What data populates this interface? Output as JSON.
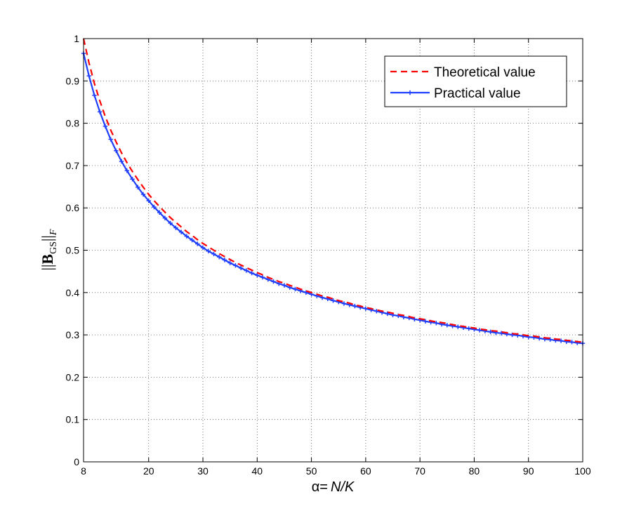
{
  "chart_data": {
    "type": "line",
    "title": "",
    "xlabel_alpha": "α=",
    "xlabel_var": "N/K",
    "ylabel": {
      "norm_open": "||",
      "symbol": "B",
      "subscript": "GS",
      "norm_close": "||",
      "subscript2": "F"
    },
    "xlim": [
      8,
      100
    ],
    "ylim": [
      0,
      1
    ],
    "xticks": [
      8,
      20,
      30,
      40,
      50,
      60,
      70,
      80,
      90,
      100
    ],
    "yticks": [
      0,
      0.1,
      0.2,
      0.3,
      0.4,
      0.5,
      0.6,
      0.7,
      0.8,
      0.9,
      1
    ],
    "xtick_labels": [
      "8",
      "20",
      "30",
      "40",
      "50",
      "60",
      "70",
      "80",
      "90",
      "100"
    ],
    "ytick_labels": [
      "0",
      "0.1",
      "0.2",
      "0.3",
      "0.4",
      "0.5",
      "0.6",
      "0.7",
      "0.8",
      "0.9",
      "1"
    ],
    "grid": true,
    "legend_position": "top-right",
    "x": [
      8,
      9,
      10,
      11,
      12,
      13,
      14,
      15,
      16,
      17,
      18,
      19,
      20,
      21,
      22,
      23,
      24,
      25,
      26,
      27,
      28,
      29,
      30,
      31,
      32,
      33,
      34,
      35,
      36,
      37,
      38,
      39,
      40,
      41,
      42,
      43,
      44,
      45,
      46,
      47,
      48,
      49,
      50,
      51,
      52,
      53,
      54,
      55,
      56,
      57,
      58,
      59,
      60,
      61,
      62,
      63,
      64,
      65,
      66,
      67,
      68,
      69,
      70,
      71,
      72,
      73,
      74,
      75,
      76,
      77,
      78,
      79,
      80,
      81,
      82,
      83,
      84,
      85,
      86,
      87,
      88,
      89,
      90,
      91,
      92,
      93,
      94,
      95,
      96,
      97,
      98,
      99,
      100
    ],
    "series": [
      {
        "name": "Theoretical value",
        "color": "#ff0000",
        "style": "dashed",
        "values": [
          1.0,
          0.943,
          0.894,
          0.853,
          0.816,
          0.784,
          0.756,
          0.73,
          0.707,
          0.686,
          0.667,
          0.649,
          0.632,
          0.617,
          0.603,
          0.59,
          0.577,
          0.566,
          0.555,
          0.544,
          0.535,
          0.525,
          0.516,
          0.508,
          0.5,
          0.492,
          0.485,
          0.478,
          0.471,
          0.465,
          0.459,
          0.453,
          0.447,
          0.442,
          0.436,
          0.431,
          0.426,
          0.422,
          0.417,
          0.413,
          0.408,
          0.404,
          0.4,
          0.396,
          0.392,
          0.389,
          0.385,
          0.381,
          0.378,
          0.375,
          0.371,
          0.368,
          0.365,
          0.362,
          0.359,
          0.356,
          0.354,
          0.351,
          0.348,
          0.346,
          0.343,
          0.34,
          0.338,
          0.336,
          0.333,
          0.331,
          0.329,
          0.327,
          0.324,
          0.322,
          0.32,
          0.318,
          0.316,
          0.314,
          0.312,
          0.31,
          0.309,
          0.307,
          0.305,
          0.303,
          0.302,
          0.3,
          0.298,
          0.297,
          0.295,
          0.293,
          0.292,
          0.29,
          0.289,
          0.287,
          0.286,
          0.284,
          0.283
        ]
      },
      {
        "name": "Practical value",
        "color": "#1f3fff",
        "style": "solid-plus",
        "values": [
          0.965,
          0.912,
          0.866,
          0.827,
          0.793,
          0.762,
          0.735,
          0.71,
          0.688,
          0.668,
          0.649,
          0.632,
          0.617,
          0.602,
          0.589,
          0.576,
          0.564,
          0.553,
          0.543,
          0.533,
          0.524,
          0.515,
          0.506,
          0.498,
          0.491,
          0.484,
          0.477,
          0.47,
          0.464,
          0.458,
          0.452,
          0.446,
          0.441,
          0.436,
          0.431,
          0.426,
          0.421,
          0.417,
          0.412,
          0.408,
          0.404,
          0.4,
          0.396,
          0.392,
          0.388,
          0.385,
          0.381,
          0.378,
          0.374,
          0.371,
          0.368,
          0.365,
          0.362,
          0.359,
          0.356,
          0.353,
          0.35,
          0.347,
          0.345,
          0.342,
          0.34,
          0.337,
          0.335,
          0.332,
          0.33,
          0.328,
          0.325,
          0.323,
          0.321,
          0.319,
          0.317,
          0.315,
          0.313,
          0.311,
          0.309,
          0.307,
          0.305,
          0.304,
          0.302,
          0.3,
          0.299,
          0.297,
          0.295,
          0.294,
          0.292,
          0.29,
          0.289,
          0.287,
          0.286,
          0.284,
          0.283,
          0.281,
          0.28
        ]
      }
    ]
  }
}
